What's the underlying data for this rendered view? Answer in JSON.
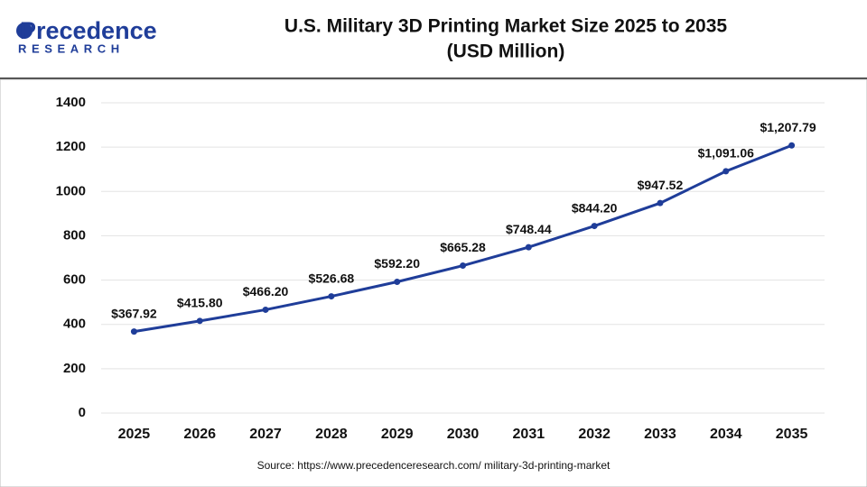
{
  "brand": {
    "name": "Precedence",
    "tagline": "RESEARCH"
  },
  "chart_data": {
    "type": "line",
    "title": "U.S. Military 3D Printing Market Size 2025 to 2035",
    "subtitle": "(USD Million)",
    "categories": [
      "2025",
      "2026",
      "2027",
      "2028",
      "2029",
      "2030",
      "2031",
      "2032",
      "2033",
      "2034",
      "2035"
    ],
    "values": [
      367.92,
      415.8,
      466.2,
      526.68,
      592.2,
      665.28,
      748.44,
      844.2,
      947.52,
      1091.06,
      1207.79
    ],
    "value_labels": [
      "$367.92",
      "$415.80",
      "$466.20",
      "$526.68",
      "$592.20",
      "$665.28",
      "$748.44",
      "$844.20",
      "$947.52",
      "$1,091.06",
      "$1,207.79"
    ],
    "color": "#1f3d99",
    "ylim": [
      0,
      1400
    ],
    "yticks": [
      0,
      200,
      400,
      600,
      800,
      1000,
      1200,
      1400
    ],
    "grid": true,
    "source": "Source: https://www.precedenceresearch.com/ military-3d-printing-market"
  }
}
